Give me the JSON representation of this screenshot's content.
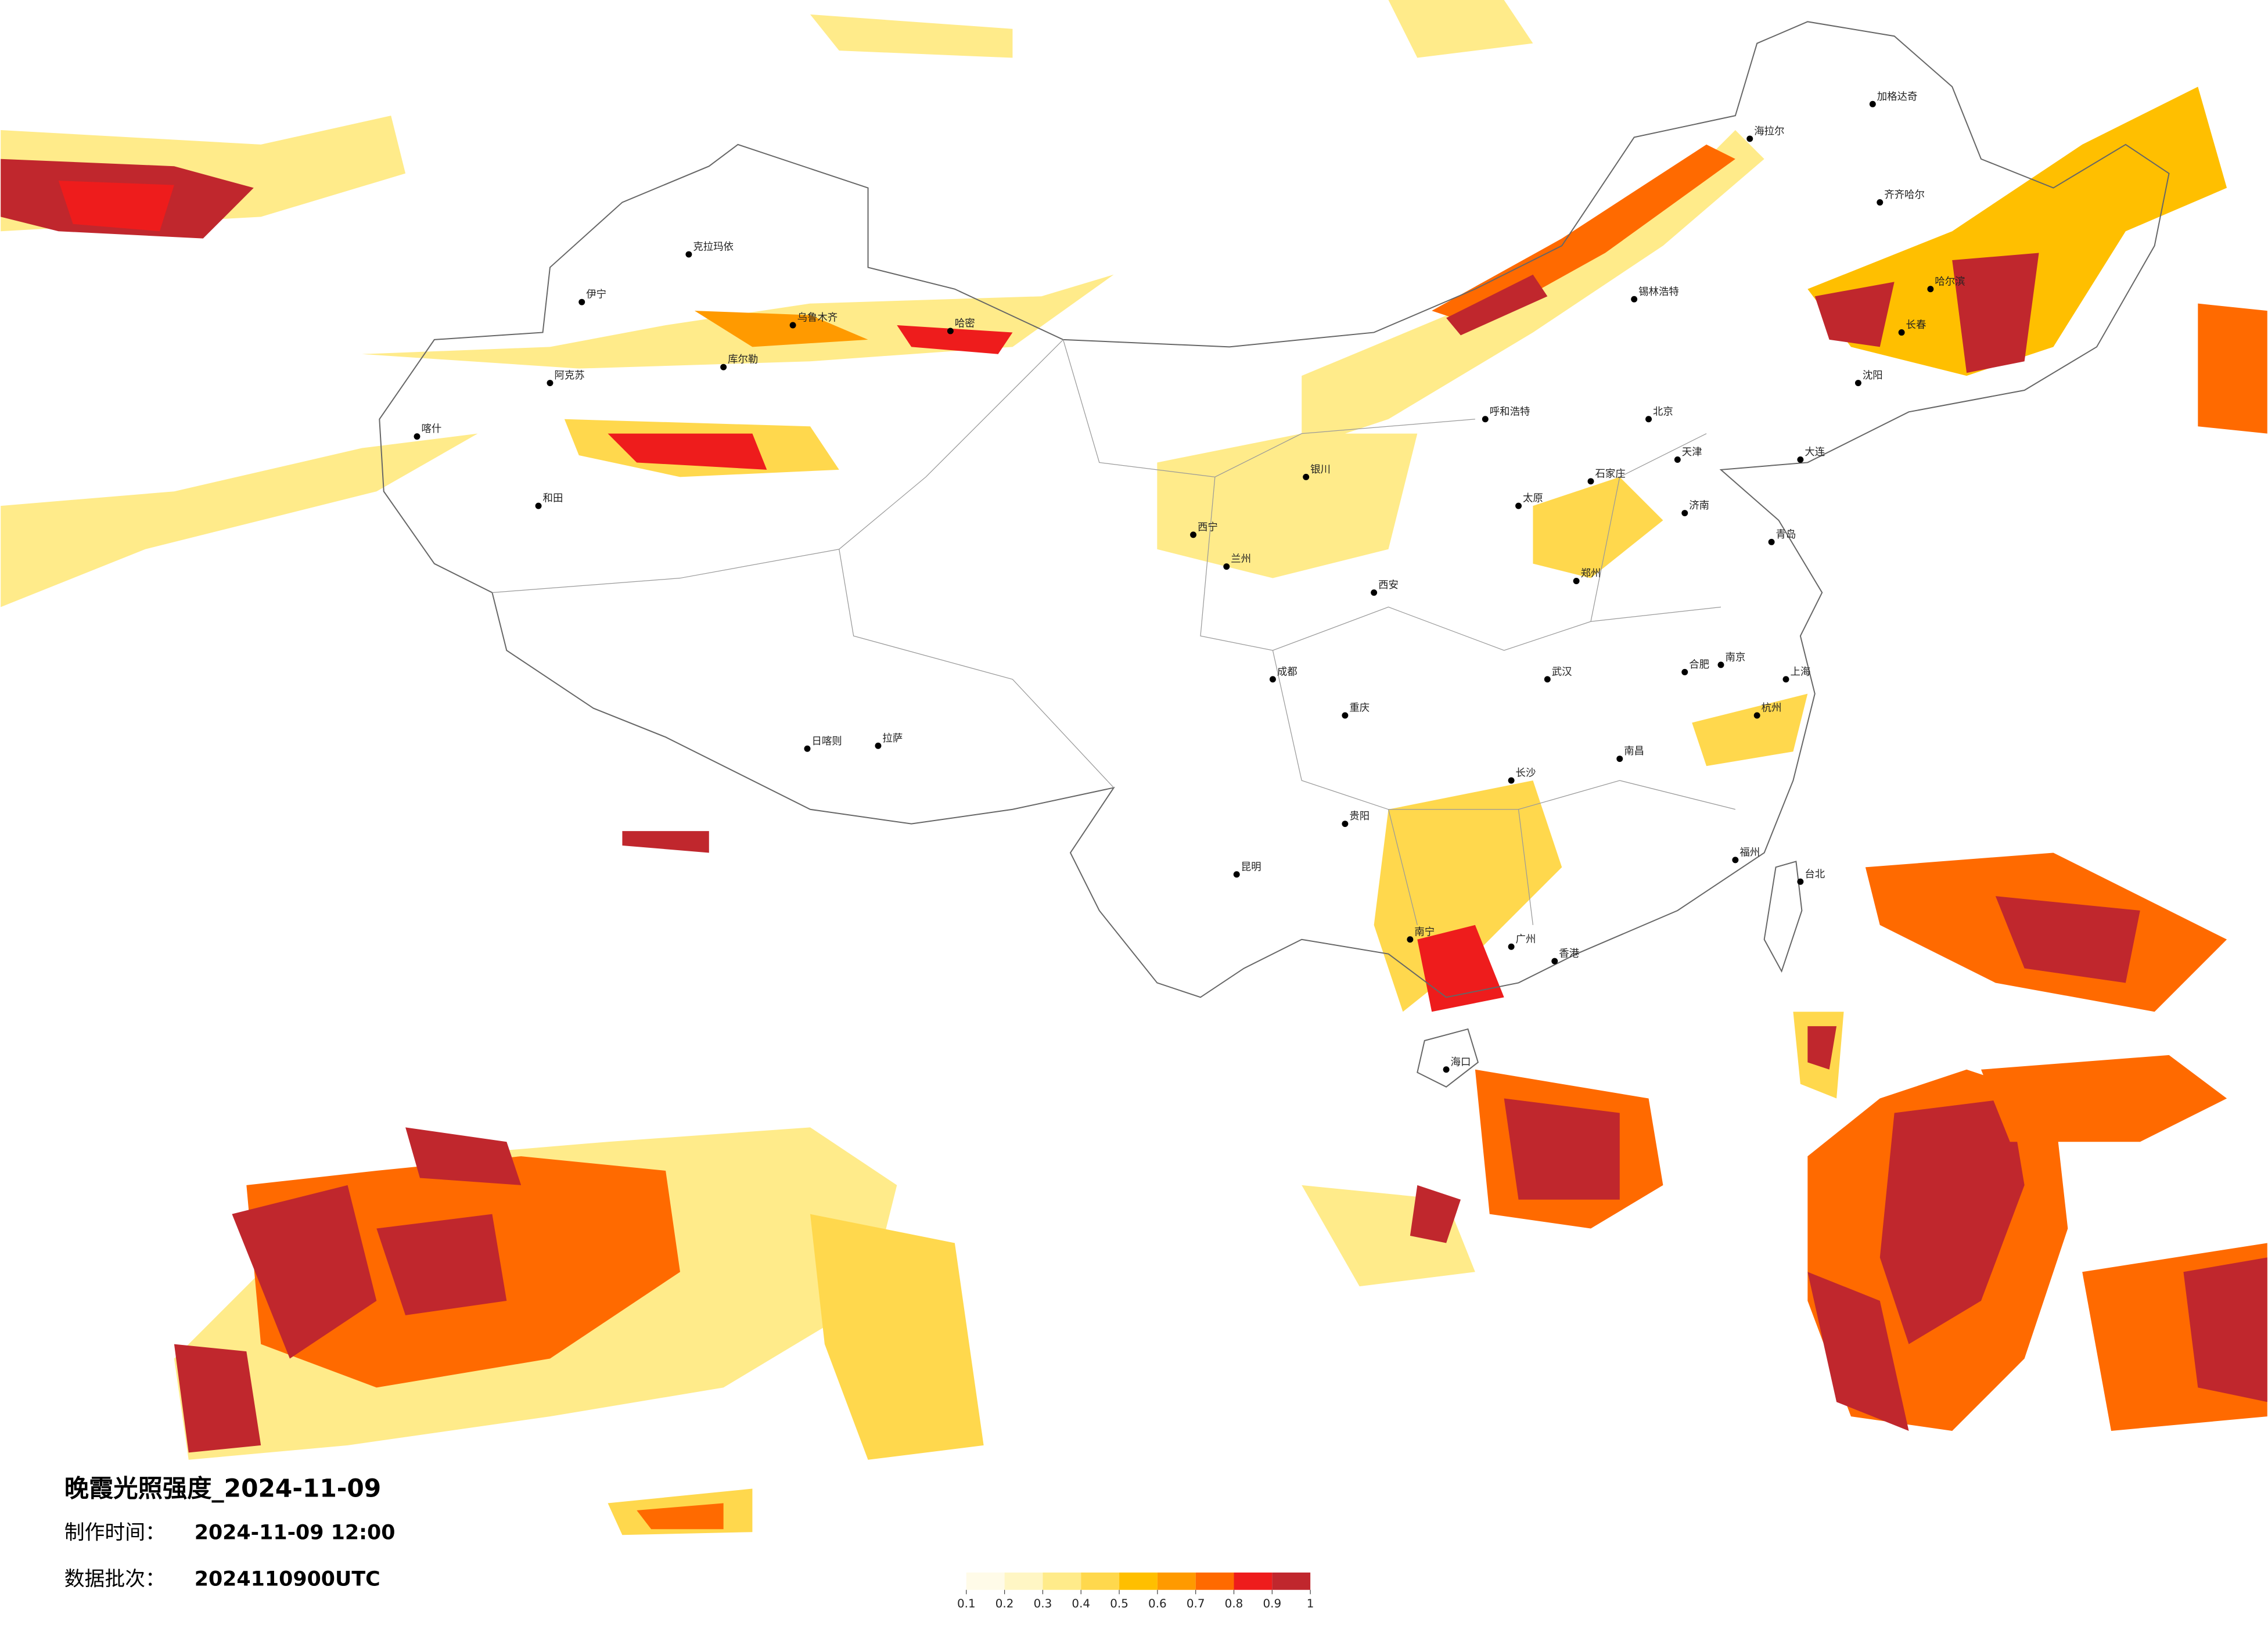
{
  "title": "晚霞光照强度_2024-11-09",
  "production_time": {
    "label": "制作时间：",
    "value": "2024-11-09 12:00"
  },
  "data_batch": {
    "label": "数据批次：",
    "value": "2024110900UTC"
  },
  "legend": {
    "ticks": [
      0.1,
      0.2,
      0.3,
      0.4,
      0.5,
      0.6,
      0.7,
      0.8,
      0.9,
      1
    ],
    "colors": [
      "#fffbe8",
      "#fff6c4",
      "#ffeb8a",
      "#ffd84d",
      "#ffbf00",
      "#ff9a00",
      "#ff6a00",
      "#ee1c1c",
      "#c0272d"
    ]
  },
  "cities": [
    "乌鲁木齐",
    "克拉玛依",
    "伊宁",
    "阿克苏",
    "喀什",
    "和田",
    "哈密",
    "库尔勒",
    "拉萨",
    "日喀则",
    "西宁",
    "兰州",
    "银川",
    "呼和浩特",
    "北京",
    "天津",
    "石家庄",
    "太原",
    "西安",
    "郑州",
    "济南",
    "青岛",
    "南京",
    "上海",
    "杭州",
    "合肥",
    "武汉",
    "长沙",
    "南昌",
    "福州",
    "台北",
    "广州",
    "香港",
    "南宁",
    "海口",
    "贵阳",
    "昆明",
    "成都",
    "重庆",
    "哈尔滨",
    "长春",
    "沈阳",
    "大连",
    "齐齐哈尔",
    "海拉尔",
    "加格达奇",
    "锡林浩特"
  ]
}
